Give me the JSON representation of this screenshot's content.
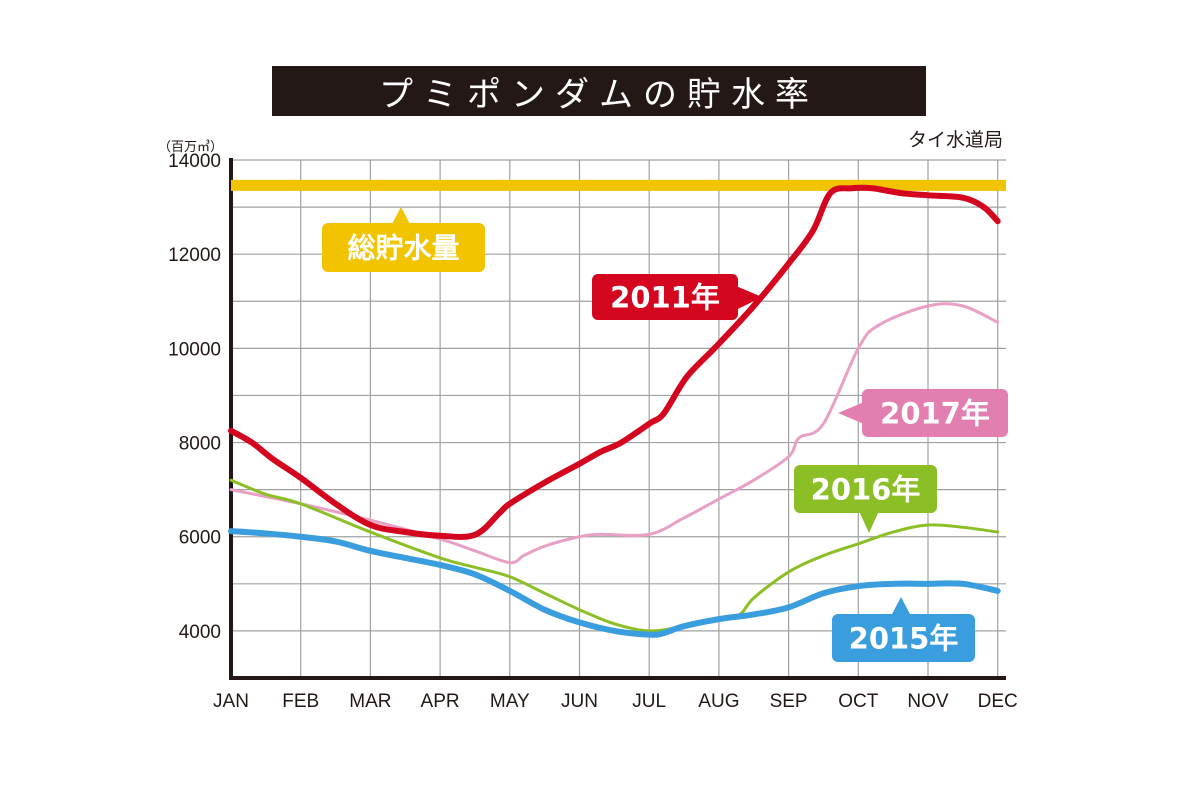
{
  "title": "プミポンダムの貯水率",
  "source": "タイ水道局",
  "unit": "（百万㎥）",
  "chart_data": {
    "type": "line",
    "title": "プミポンダムの貯水率",
    "ylabel": "（百万㎥）",
    "xlabel": "",
    "ylim": [
      3000,
      14000
    ],
    "y_ticks": [
      4000,
      6000,
      8000,
      10000,
      12000,
      14000
    ],
    "categories": [
      "JAN",
      "FEB",
      "MAR",
      "APR",
      "MAY",
      "JUN",
      "JUL",
      "AUG",
      "SEP",
      "OCT",
      "NOV",
      "DEC"
    ],
    "grid": true,
    "capacity": {
      "label": "総貯水量",
      "value": 13460,
      "color": "#f2c400"
    },
    "series": [
      {
        "name": "2011年",
        "color": "#d4061f",
        "width": 6,
        "x": [
          0,
          0.3,
          0.6,
          1.0,
          1.5,
          2.0,
          2.5,
          3.0,
          3.5,
          3.85,
          4.0,
          4.5,
          5.0,
          5.3,
          5.6,
          6.0,
          6.2,
          6.45,
          6.6,
          7.0,
          7.5,
          8.0,
          8.35,
          8.6,
          8.9,
          9.2,
          9.6,
          10.0,
          10.5,
          10.8,
          11.0
        ],
        "values": [
          8250,
          8000,
          7650,
          7250,
          6700,
          6250,
          6100,
          6020,
          6040,
          6500,
          6700,
          7150,
          7550,
          7800,
          8000,
          8400,
          8600,
          9200,
          9500,
          10100,
          10900,
          11800,
          12500,
          13300,
          13400,
          13400,
          13300,
          13250,
          13200,
          13000,
          12700
        ]
      },
      {
        "name": "2017年",
        "color": "#e8a0c5",
        "width": 3,
        "x": [
          0,
          1.0,
          2.0,
          3.0,
          3.5,
          4.0,
          4.2,
          4.5,
          5.0,
          5.3,
          6.0,
          6.5,
          7.0,
          7.5,
          8.0,
          8.15,
          8.5,
          9.0,
          9.3,
          10.0,
          10.5,
          11.0
        ],
        "values": [
          7000,
          6700,
          6350,
          5950,
          5700,
          5450,
          5600,
          5800,
          6000,
          6050,
          6050,
          6400,
          6800,
          7200,
          7700,
          8100,
          8400,
          10000,
          10500,
          10900,
          10900,
          10550
        ]
      },
      {
        "name": "2016年",
        "color": "#8cbf26",
        "width": 3,
        "x": [
          0,
          0.5,
          1.0,
          2.0,
          3.0,
          3.5,
          4.0,
          4.5,
          5.0,
          5.5,
          6.0,
          6.5,
          7.0,
          7.3,
          7.5,
          8.0,
          8.5,
          9.0,
          9.5,
          10.0,
          10.5,
          11.0
        ],
        "values": [
          7200,
          6900,
          6700,
          6100,
          5550,
          5350,
          5150,
          4800,
          4450,
          4150,
          4000,
          4100,
          4250,
          4350,
          4700,
          5250,
          5600,
          5850,
          6100,
          6250,
          6200,
          6100
        ]
      },
      {
        "name": "2015年",
        "color": "#3a9ede",
        "width": 6,
        "x": [
          0,
          0.5,
          1.0,
          1.5,
          2.0,
          2.5,
          3.0,
          3.5,
          4.0,
          4.5,
          5.0,
          5.5,
          6.0,
          6.2,
          6.5,
          7.0,
          7.5,
          8.0,
          8.5,
          9.0,
          9.5,
          10.0,
          10.5,
          11.0
        ],
        "values": [
          6120,
          6070,
          6000,
          5900,
          5700,
          5550,
          5400,
          5200,
          4850,
          4450,
          4180,
          4000,
          3920,
          3950,
          4100,
          4250,
          4350,
          4500,
          4800,
          4950,
          5000,
          5000,
          5000,
          4850
        ]
      }
    ],
    "callouts": [
      {
        "series": "2011年",
        "text": "2011年",
        "color": "#d4061f"
      },
      {
        "series": "2017年",
        "text": "2017年",
        "color": "#e27fb0"
      },
      {
        "series": "2016年",
        "text": "2016年",
        "color": "#8cbf26"
      },
      {
        "series": "2015年",
        "text": "2015年",
        "color": "#3a9ede"
      }
    ]
  }
}
